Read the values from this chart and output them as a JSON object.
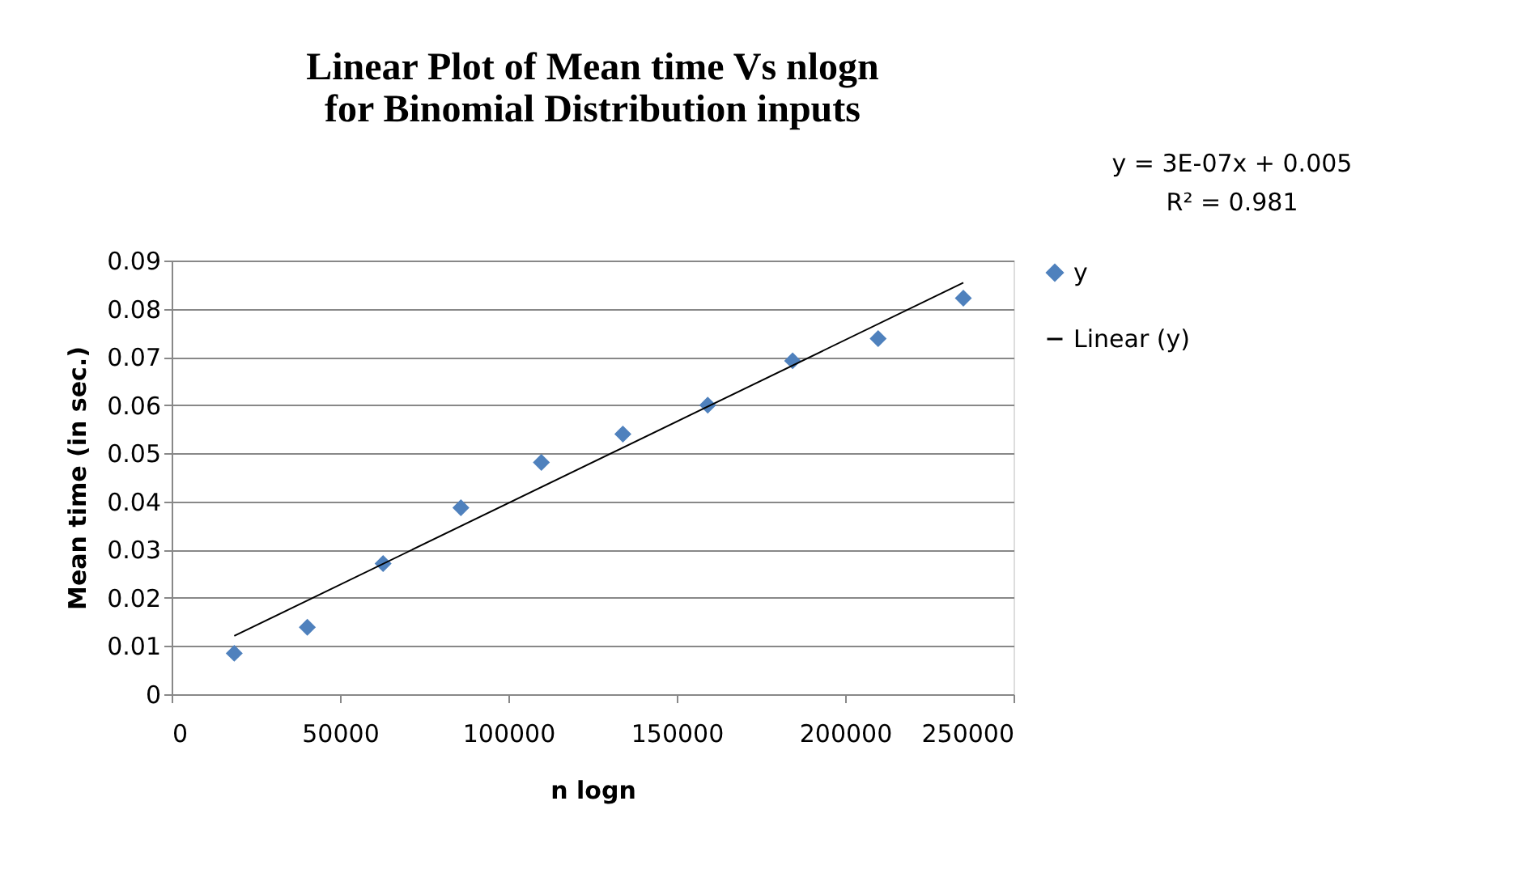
{
  "chart_data": {
    "type": "scatter",
    "title": [
      "Linear Plot of Mean time Vs nlogn",
      "for Binomial Distribution inputs"
    ],
    "xlabel": "n logn",
    "ylabel": "Mean time (in sec.)",
    "series": [
      {
        "name": "y",
        "color": "#4f81bd",
        "marker": "diamond",
        "x": [
          18600,
          40300,
          62800,
          85900,
          109800,
          134000,
          159200,
          184400,
          209800,
          235100
        ],
        "values": [
          0.0085,
          0.0139,
          0.0271,
          0.0387,
          0.0481,
          0.054,
          0.06,
          0.0692,
          0.0738,
          0.0822
        ]
      },
      {
        "name": "Linear (y)",
        "type": "line",
        "color": "#000000",
        "x": [
          18600,
          235100
        ],
        "values": [
          0.0121,
          0.0854
        ]
      }
    ],
    "annotations": [
      "y = 3E-07x + 0.005",
      "R² = 0.981"
    ],
    "xlim": [
      0,
      250000
    ],
    "xticks": [
      0,
      50000,
      100000,
      150000,
      200000,
      250000
    ],
    "ylim": [
      0,
      0.09
    ],
    "yticks": [
      0,
      0.01,
      0.02,
      0.03,
      0.04,
      0.05,
      0.06,
      0.07,
      0.08,
      0.09
    ],
    "grid": "y",
    "legend": "right"
  }
}
